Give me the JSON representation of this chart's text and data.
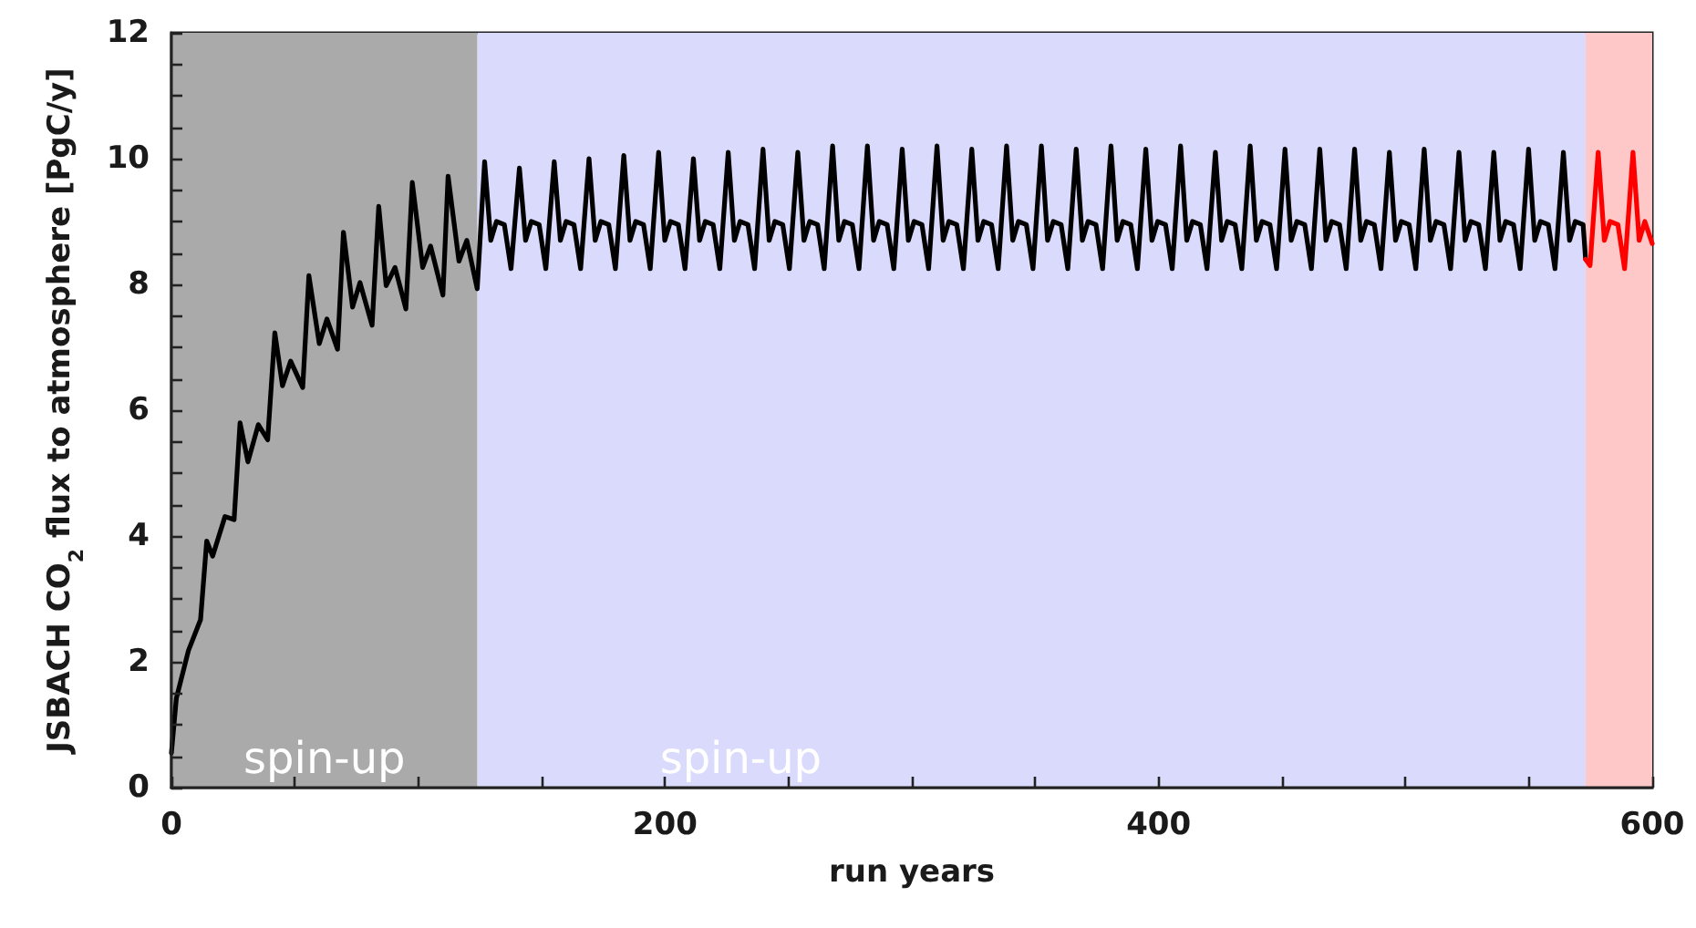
{
  "chart_data": {
    "type": "line",
    "xlabel": "run years",
    "ylabel": "JSBACH CO$_{2}$ flux to atmosphere [PgC/y]",
    "xlim": [
      0,
      600
    ],
    "xticks": [
      0,
      {
        "value": 50,
        "label": null
      },
      {
        "value": 100,
        "label": null
      },
      {
        "value": 150,
        "label": null
      },
      200,
      {
        "value": 250,
        "label": null
      },
      {
        "value": 300,
        "label": null
      },
      {
        "value": 350,
        "label": null
      },
      400,
      {
        "value": 450,
        "label": null
      },
      {
        "value": 500,
        "label": null
      },
      {
        "value": 550,
        "label": null
      },
      600
    ],
    "ylim": [
      0,
      12
    ],
    "yticks": [
      0,
      {
        "value": 0.5,
        "label": null
      },
      {
        "value": 1,
        "label": null
      },
      {
        "value": 1.5,
        "label": null
      },
      2,
      {
        "value": 2.5,
        "label": null
      },
      {
        "value": 3,
        "label": null
      },
      {
        "value": 3.5,
        "label": null
      },
      4,
      {
        "value": 4.5,
        "label": null
      },
      {
        "value": 5,
        "label": null
      },
      {
        "value": 5.5,
        "label": null
      },
      6,
      {
        "value": 6.5,
        "label": null
      },
      {
        "value": 7,
        "label": null
      },
      {
        "value": 7.5,
        "label": null
      },
      8,
      {
        "value": 8.5,
        "label": null
      },
      {
        "value": 9,
        "label": null
      },
      {
        "value": 9.5,
        "label": null
      },
      10,
      {
        "value": 10.5,
        "label": null
      },
      {
        "value": 11,
        "label": null
      },
      {
        "value": 11.5,
        "label": null
      },
      12
    ],
    "grid": false,
    "marker": "none",
    "line_style": "solid",
    "bands": [
      {
        "axis": "x",
        "from": 0,
        "to": 124,
        "label": "spin-up",
        "color": "#aaaaaa"
      },
      {
        "axis": "x",
        "from": 124,
        "to": 573,
        "label": "spin-up",
        "color": "#dadafd"
      },
      {
        "axis": "x",
        "from": 573,
        "to": 600,
        "color": "#ffc8c8"
      }
    ],
    "series": [
      {
        "color": "#000000",
        "x": [
          0,
          2,
          6.9,
          11.8,
          14.3,
          16.7,
          21.7,
          25.4,
          27.8,
          31,
          35.2,
          39,
          41.9,
          45,
          48.3,
          53.2,
          55.7,
          59.9,
          63,
          67.3,
          69.7,
          73.4,
          76.4,
          81.3,
          84,
          87,
          90.6,
          95,
          97.6,
          101.8,
          105,
          110,
          112.1,
          116.5,
          119.7,
          123.9,
          126.9,
          129.4,
          131.7,
          134.9,
          137.6,
          141,
          143.5,
          145.8,
          149,
          151.7,
          155.1,
          157.6,
          159.9,
          163.1,
          165.8,
          169.2,
          171.7,
          174,
          177.2,
          179.9,
          183.3,
          185.8,
          188.1,
          191.3,
          194,
          197.4,
          199.9,
          202.2,
          205.4,
          208.1,
          211.5,
          214,
          216.3,
          219.5,
          222.2,
          225.6,
          228.1,
          230.4,
          233.6,
          236.3,
          239.7,
          242.2,
          244.5,
          247.7,
          250.4,
          253.8,
          256.3,
          258.6,
          261.8,
          264.5,
          267.9,
          270.4,
          272.7,
          275.9,
          278.6,
          282,
          284.5,
          286.8,
          290,
          292.7,
          296.1,
          298.6,
          300.9,
          304.1,
          306.8,
          310.2,
          312.7,
          315,
          318.2,
          320.9,
          324.3,
          326.8,
          329.1,
          332.3,
          335,
          338.4,
          340.9,
          343.2,
          346.4,
          349.1,
          352.5,
          355,
          357.3,
          360.5,
          363.2,
          366.6,
          369.1,
          371.4,
          374.6,
          377.3,
          380.7,
          383.2,
          385.5,
          388.7,
          391.4,
          394.8,
          397.3,
          399.6,
          402.8,
          405.5,
          408.9,
          411.4,
          413.7,
          416.9,
          419.6,
          423,
          425.5,
          427.8,
          431,
          433.7,
          437.1,
          439.6,
          441.9,
          445.1,
          447.8,
          451.2,
          453.7,
          456,
          459.2,
          461.9,
          465.3,
          467.8,
          470.1,
          473.3,
          476,
          479.4,
          481.9,
          484.2,
          487.4,
          490.1,
          493.5,
          496,
          498.3,
          501.5,
          504.2,
          507.6,
          510.1,
          512.4,
          515.6,
          518.3,
          521.7,
          524.2,
          526.5,
          529.7,
          532.4,
          535.8,
          538.3,
          540.6,
          543.8,
          546.5,
          549.9,
          552.4,
          554.7,
          557.9,
          560.6,
          564,
          566.5,
          568.8,
          572,
          573
        ],
        "values": [
          0.55,
          1.42,
          2.18,
          2.67,
          3.92,
          3.68,
          4.31,
          4.26,
          5.8,
          5.18,
          5.77,
          5.53,
          7.23,
          6.39,
          6.78,
          6.36,
          8.14,
          7.06,
          7.45,
          6.97,
          8.83,
          7.64,
          8.03,
          7.35,
          9.24,
          7.98,
          8.27,
          7.61,
          9.62,
          8.27,
          8.61,
          7.83,
          9.72,
          8.37,
          8.7,
          7.93,
          9.95,
          8.7,
          9.0,
          8.95,
          8.25,
          9.85,
          8.7,
          9.0,
          8.95,
          8.25,
          9.95,
          8.7,
          9.0,
          8.95,
          8.25,
          10.0,
          8.7,
          9.0,
          8.95,
          8.25,
          10.05,
          8.7,
          9.0,
          8.95,
          8.25,
          10.1,
          8.7,
          9.0,
          8.95,
          8.25,
          10.0,
          8.7,
          9.0,
          8.95,
          8.25,
          10.1,
          8.7,
          9.0,
          8.95,
          8.25,
          10.15,
          8.7,
          9.0,
          8.95,
          8.25,
          10.1,
          8.7,
          9.0,
          8.95,
          8.25,
          10.2,
          8.7,
          9.0,
          8.95,
          8.25,
          10.2,
          8.7,
          9.0,
          8.95,
          8.25,
          10.15,
          8.7,
          9.0,
          8.95,
          8.25,
          10.2,
          8.7,
          9.0,
          8.95,
          8.25,
          10.15,
          8.7,
          9.0,
          8.95,
          8.25,
          10.2,
          8.7,
          9.0,
          8.95,
          8.25,
          10.2,
          8.7,
          9.0,
          8.95,
          8.25,
          10.15,
          8.7,
          9.0,
          8.95,
          8.25,
          10.2,
          8.7,
          9.0,
          8.95,
          8.25,
          10.15,
          8.7,
          9.0,
          8.95,
          8.25,
          10.2,
          8.7,
          9.0,
          8.95,
          8.25,
          10.1,
          8.7,
          9.0,
          8.95,
          8.25,
          10.2,
          8.7,
          9.0,
          8.95,
          8.25,
          10.15,
          8.7,
          9.0,
          8.95,
          8.25,
          10.15,
          8.7,
          9.0,
          8.95,
          8.25,
          10.15,
          8.7,
          9.0,
          8.95,
          8.25,
          10.1,
          8.7,
          9.0,
          8.95,
          8.25,
          10.15,
          8.7,
          9.0,
          8.95,
          8.25,
          10.1,
          8.7,
          9.0,
          8.95,
          8.25,
          10.1,
          8.7,
          9.0,
          8.95,
          8.25,
          10.15,
          8.7,
          9.0,
          8.95,
          8.25,
          10.1,
          8.7,
          9.0,
          8.95,
          8.4
        ]
      },
      {
        "color": "#ff0000",
        "x": [
          573,
          574.8,
          578.1,
          580.6,
          582.9,
          586.1,
          588.8,
          592.2,
          594.7,
          597,
          600
        ],
        "values": [
          8.4,
          8.3,
          10.1,
          8.7,
          9.0,
          8.95,
          8.25,
          10.1,
          8.7,
          9.0,
          8.65
        ]
      }
    ]
  }
}
